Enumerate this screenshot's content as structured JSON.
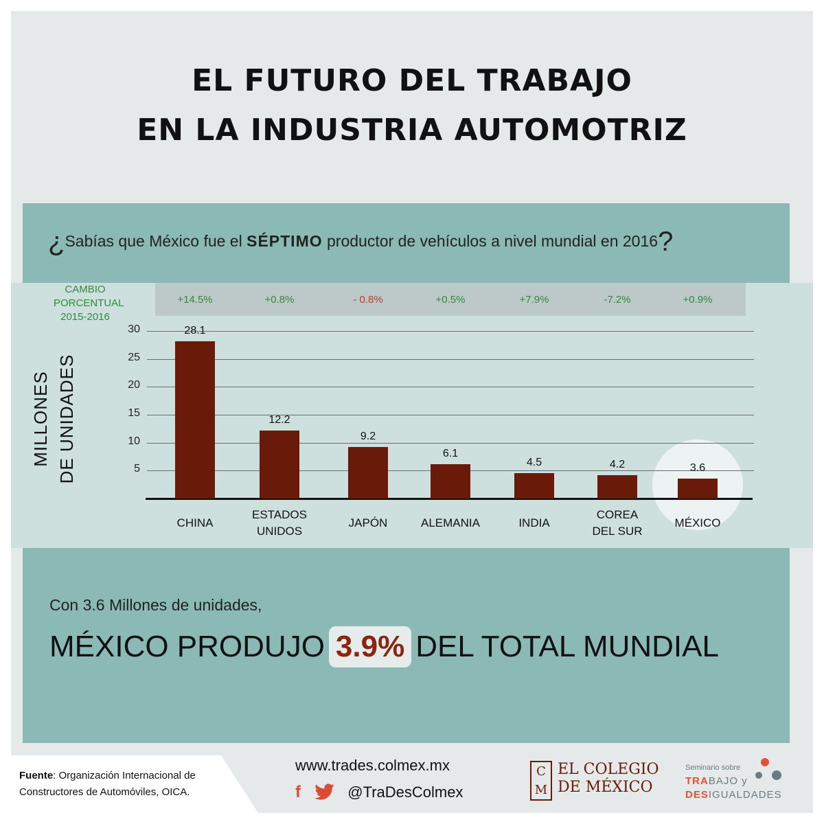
{
  "title": {
    "line1": "EL FUTURO DEL TRABAJO",
    "line2": "EN LA INDUSTRIA AUTOMOTRIZ"
  },
  "question": {
    "open": "¿",
    "before": "Sabías que México fue el ",
    "emph": "SÉPTIMO",
    "after": " productor de vehículos a nivel mundial en 2016",
    "close": "?"
  },
  "cambio_label": [
    "CAMBIO",
    "PORCENTUAL",
    "2015-2016"
  ],
  "colors": {
    "bar": "#6a1a08",
    "positive": "#2f8a3a",
    "negative": "#c0392b",
    "highlight_value": "#8a2510"
  },
  "chart_data": {
    "type": "bar",
    "ylabel": [
      "MILLONES",
      "DE UNIDADES"
    ],
    "ylim": [
      0,
      30
    ],
    "yticks": [
      "5",
      "10",
      "15",
      "20",
      "25",
      "30"
    ],
    "categories": [
      [
        "CHINA"
      ],
      [
        "ESTADOS",
        "UNIDOS"
      ],
      [
        "JAPÓN"
      ],
      [
        "ALEMANIA"
      ],
      [
        "INDIA"
      ],
      [
        "COREA",
        "DEL SUR"
      ],
      [
        "MÉXICO"
      ]
    ],
    "values": [
      28.1,
      12.2,
      9.2,
      6.1,
      4.5,
      4.2,
      3.6
    ],
    "value_labels": [
      "28.1",
      "12.2",
      "9.2",
      "6.1",
      "4.5",
      "4.2",
      "3.6"
    ],
    "percent_change": [
      "+14.5%",
      "+0.8%",
      "- 0.8%",
      "+0.5%",
      "+7.9%",
      "-7.2%",
      "+0.9%"
    ],
    "highlighted": "MÉXICO",
    "grid": true
  },
  "summary": {
    "line1": "Con 3.6 Millones de unidades,",
    "before": "MÉXICO PRODUJO",
    "value": "3.9%",
    "after": "DEL TOTAL MUNDIAL"
  },
  "footer": {
    "source_label": "Fuente",
    "source_text": ": Organización Internacional de",
    "source_text2": "Constructores de Automóviles, OICA.",
    "website": "www.trades.colmex.mx",
    "fb_icon": "f",
    "twitter_icon": "twitter-bird",
    "handle": "@TraDesColmex",
    "colegio_line1": "EL COLEGIO",
    "colegio_line2": "DE MÉXICO",
    "colegio_c": "C",
    "colegio_m": "M",
    "seminario_small": "Seminario sobre",
    "seminario_tra": "TRA",
    "seminario_bajo": "BAJO y",
    "seminario_des": "DES",
    "seminario_igualdades": "IGUALDADES"
  }
}
